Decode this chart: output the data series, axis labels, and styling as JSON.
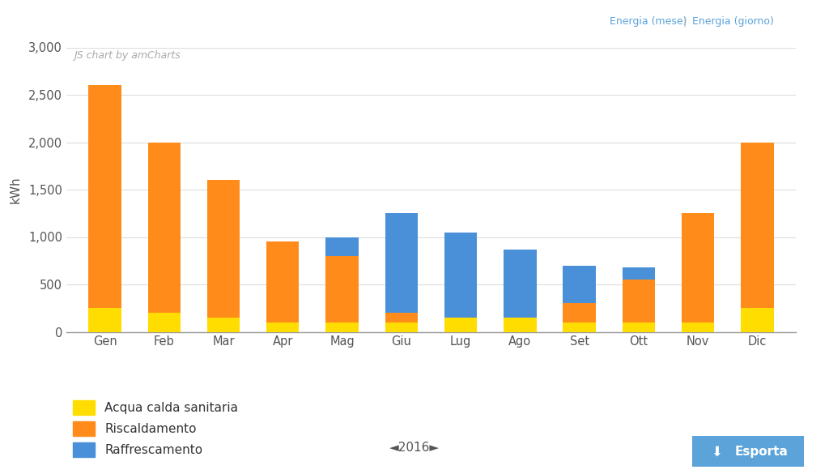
{
  "months": [
    "Gen",
    "Feb",
    "Mar",
    "Apr",
    "Mag",
    "Giu",
    "Lug",
    "Ago",
    "Set",
    "Ott",
    "Nov",
    "Dic"
  ],
  "acqua_calda": [
    250,
    200,
    150,
    100,
    100,
    100,
    150,
    150,
    100,
    100,
    100,
    250
  ],
  "riscaldamento": [
    2350,
    1800,
    1450,
    850,
    700,
    100,
    0,
    0,
    200,
    450,
    1150,
    1750
  ],
  "raffrescamento": [
    0,
    0,
    0,
    0,
    200,
    1050,
    900,
    720,
    400,
    130,
    0,
    0
  ],
  "color_acqua": "#FFDD00",
  "color_riscaldamento": "#FF8C1A",
  "color_raffrescamento": "#4A90D9",
  "ylim": [
    0,
    3000
  ],
  "yticks": [
    0,
    500,
    1000,
    1500,
    2000,
    2500,
    3000
  ],
  "ylabel": "kWh",
  "watermark": "JS chart by amCharts",
  "legend_labels": [
    "Acqua calda sanitaria",
    "Riscaldamento",
    "Raffrescamento"
  ],
  "year_label": "◄2016►",
  "top_right_text1": "Energia (mese)",
  "top_right_sep": " | ",
  "top_right_text2": "Energia (giorno)",
  "background_color": "#FFFFFF",
  "outer_bg": "#F5F5F5",
  "bar_width": 0.55,
  "grid_color": "#DDDDDD",
  "axis_color": "#999999",
  "tick_color": "#555555",
  "watermark_color": "#AAAAAA",
  "link_color": "#5BA3D9",
  "legend_text_color": "#333333",
  "export_bg": "#5BA3D9",
  "export_text": "Esporta"
}
